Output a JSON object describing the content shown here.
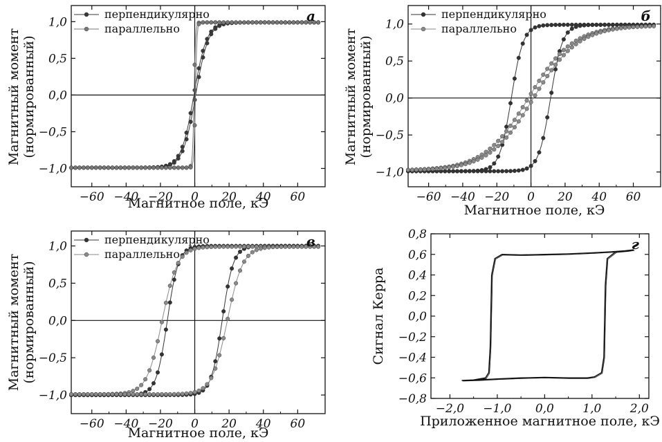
{
  "chart_data": [
    {
      "type": "line",
      "panel": "a",
      "xlabel": "Магнитное поле, кЭ",
      "ylabel": [
        "Магнитный момент",
        "(нормированный)"
      ],
      "xlim": [
        -72,
        76
      ],
      "ylim": [
        -1.25,
        1.22
      ],
      "xticks": [
        -60,
        -40,
        -20,
        0,
        20,
        40,
        60
      ],
      "yticks": [
        1.0,
        0.5,
        0.0,
        -0.5,
        -1.0
      ],
      "ytick_labels": [
        "1,0",
        "0,5",
        "0,0",
        "−0,5",
        "−1,0"
      ],
      "xtick_labels": [
        "−60",
        "−40",
        "−20",
        "0",
        "20",
        "40",
        "60"
      ],
      "legend_position": "top-left",
      "series": [
        {
          "name": "перпендикулярно",
          "shape": "tanh_loop",
          "Ms": 0.99,
          "Hc": 0.5,
          "w": 7.5,
          "color": "#3a3a3a"
        },
        {
          "name": "параллельно",
          "shape": "square_loop",
          "Ms": 0.99,
          "Hc": 0.4,
          "color": "#777777"
        }
      ]
    },
    {
      "type": "line",
      "panel": "б",
      "xlabel": "Магнитное поле, кЭ",
      "ylabel": [
        "Магнитный момент",
        "(нормированный)"
      ],
      "xlim": [
        -72,
        76
      ],
      "ylim": [
        -1.2,
        1.25
      ],
      "xticks": [
        -60,
        -40,
        -20,
        0,
        20,
        40,
        60
      ],
      "yticks": [
        1.0,
        0.5,
        0.0,
        -0.5,
        -1.0
      ],
      "ytick_labels": [
        "1,0",
        "0,5",
        "0,0",
        "−0,5",
        "−1,0"
      ],
      "xtick_labels": [
        "−60",
        "−40",
        "−20",
        "0",
        "20",
        "40",
        "60"
      ],
      "legend_position": "top-left",
      "series": [
        {
          "name": "перпендикулярно",
          "shape": "tanh_loop",
          "Ms": 0.99,
          "Hc": 11.5,
          "w": 7,
          "color": "#333333"
        },
        {
          "name": "параллельно",
          "shape": "tanh_loop",
          "Ms": 0.98,
          "Hc": 1.5,
          "w": 26,
          "color": "#8a8a8a"
        }
      ]
    },
    {
      "type": "line",
      "panel": "в",
      "xlabel": "Магнитное поле, кЭ",
      "ylabel": [
        "Магнитный момент",
        "(нормированный)"
      ],
      "xlim": [
        -72,
        76
      ],
      "ylim": [
        -1.25,
        1.2
      ],
      "xticks": [
        -60,
        -40,
        -20,
        0,
        20,
        40,
        60
      ],
      "yticks": [
        1.0,
        0.5,
        0.0,
        -0.5,
        -1.0
      ],
      "ytick_labels": [
        "1,0",
        "0,5",
        "0,0",
        "−0,5",
        "−1,0"
      ],
      "xtick_labels": [
        "−60",
        "−40",
        "−20",
        "0",
        "20",
        "40",
        "60"
      ],
      "legend_position": "top-left",
      "series": [
        {
          "name": "перпендикулярно",
          "shape": "tanh_loop",
          "Ms": 1.0,
          "Hc": 16,
          "w": 6.5,
          "color": "#333333"
        },
        {
          "name": "параллельно",
          "shape": "tanh_loop",
          "Ms": 0.99,
          "Hc": 19,
          "w": 9,
          "color": "#8a8a8a"
        }
      ]
    },
    {
      "type": "line",
      "panel": "г",
      "xlabel": "Приложенное магнитное поле, кЭ",
      "ylabel": [
        "Сигнал Керра"
      ],
      "xlim": [
        -2.4,
        2.2
      ],
      "ylim": [
        -0.8,
        0.8
      ],
      "xticks": [
        -2.0,
        -1.0,
        0.0,
        1.0,
        2.0
      ],
      "xtick_labels": [
        "−2,0",
        "−1,0",
        "0,0",
        "1,0",
        "2,0"
      ],
      "yticks": [
        0.8,
        0.6,
        0.4,
        0.2,
        0.0,
        -0.2,
        -0.4,
        -0.6,
        -0.8
      ],
      "ytick_labels": [
        "0,8",
        "0,6",
        "0,4",
        "0,2",
        "0,0",
        "−0,2",
        "−0,4",
        "−0,6",
        "−0,8"
      ],
      "series": [
        {
          "name": "",
          "color": "#111111",
          "x": [
            -1.75,
            -1.5,
            -1.25,
            -1.18,
            -1.15,
            -1.12,
            -1.05,
            -0.9,
            -0.5,
            0.0,
            0.5,
            1.0,
            1.4,
            1.7,
            1.88,
            1.75,
            1.5,
            1.32,
            1.28,
            1.25,
            1.2,
            1.05,
            0.9,
            0.5,
            0.0,
            -0.5,
            -1.0,
            -1.4,
            -1.75
          ],
          "y": [
            -0.625,
            -0.62,
            -0.6,
            -0.55,
            -0.3,
            0.4,
            0.56,
            0.6,
            0.595,
            0.6,
            0.605,
            0.615,
            0.625,
            0.635,
            0.645,
            0.635,
            0.625,
            0.56,
            0.3,
            -0.4,
            -0.55,
            -0.59,
            -0.6,
            -0.6,
            -0.595,
            -0.6,
            -0.61,
            -0.62,
            -0.625
          ]
        }
      ]
    }
  ],
  "panel_labels": [
    "a",
    "б",
    "в",
    "г"
  ]
}
